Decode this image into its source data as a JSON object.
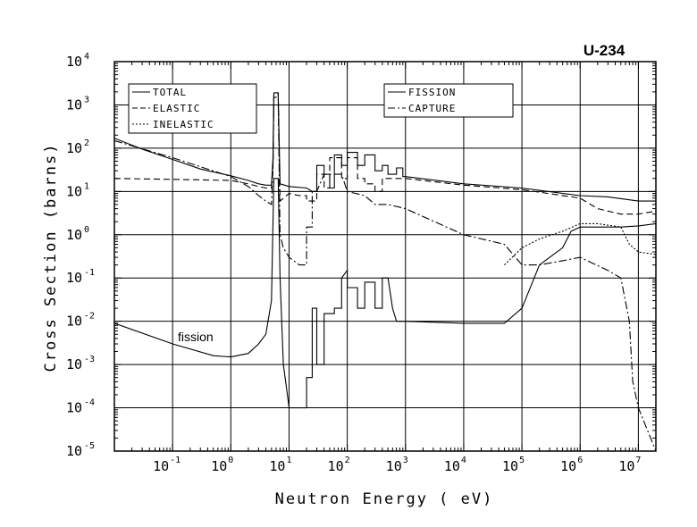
{
  "chart_data": {
    "type": "line",
    "title": "U-234",
    "xlabel": "Neutron Energy ( eV)",
    "ylabel": "Cross Section (barns)",
    "xscale": "log",
    "yscale": "log",
    "xlim": [
      0.01,
      20000000
    ],
    "ylim": [
      1e-05,
      10000
    ],
    "grid": true,
    "x_ticks": [
      {
        "base": "10",
        "exp": "-1"
      },
      {
        "base": "10",
        "exp": "0"
      },
      {
        "base": "10",
        "exp": "1"
      },
      {
        "base": "10",
        "exp": "2"
      },
      {
        "base": "10",
        "exp": "3"
      },
      {
        "base": "10",
        "exp": "4"
      },
      {
        "base": "10",
        "exp": "5"
      },
      {
        "base": "10",
        "exp": "6"
      },
      {
        "base": "10",
        "exp": "7"
      }
    ],
    "y_ticks": [
      {
        "base": "10",
        "exp": "-5"
      },
      {
        "base": "10",
        "exp": "-4"
      },
      {
        "base": "10",
        "exp": "-3"
      },
      {
        "base": "10",
        "exp": "-2"
      },
      {
        "base": "10",
        "exp": "-1"
      },
      {
        "base": "10",
        "exp": "0"
      },
      {
        "base": "10",
        "exp": "1"
      },
      {
        "base": "10",
        "exp": "2"
      },
      {
        "base": "10",
        "exp": "3"
      },
      {
        "base": "10",
        "exp": "4"
      }
    ],
    "legend": [
      {
        "position": "top-left",
        "entries": [
          "TOTAL",
          "ELASTIC",
          "INELASTIC"
        ]
      },
      {
        "position": "top-center",
        "entries": [
          "FISSION",
          "CAPTURE"
        ]
      }
    ],
    "annotations": [
      "fission"
    ],
    "series": [
      {
        "name": "TOTAL",
        "style": "solid",
        "points": [
          [
            0.01,
            170
          ],
          [
            0.03,
            95
          ],
          [
            0.1,
            55
          ],
          [
            0.3,
            33
          ],
          [
            1,
            23
          ],
          [
            2,
            18
          ],
          [
            3,
            15
          ],
          [
            4,
            14
          ],
          [
            5,
            14
          ],
          [
            5.3,
            60
          ],
          [
            5.5,
            1900
          ],
          [
            6.5,
            1900
          ],
          [
            7,
            15
          ],
          [
            10,
            13
          ],
          [
            20,
            12
          ],
          [
            25,
            10
          ],
          [
            30,
            10
          ],
          [
            30,
            40
          ],
          [
            40,
            40
          ],
          [
            40,
            25
          ],
          [
            50,
            25
          ],
          [
            50,
            12
          ],
          [
            60,
            12
          ],
          [
            60,
            70
          ],
          [
            80,
            70
          ],
          [
            80,
            40
          ],
          [
            100,
            40
          ],
          [
            100,
            80
          ],
          [
            150,
            80
          ],
          [
            150,
            40
          ],
          [
            200,
            40
          ],
          [
            200,
            70
          ],
          [
            300,
            70
          ],
          [
            300,
            30
          ],
          [
            400,
            30
          ],
          [
            400,
            40
          ],
          [
            500,
            40
          ],
          [
            500,
            25
          ],
          [
            700,
            25
          ],
          [
            700,
            35
          ],
          [
            900,
            35
          ],
          [
            900,
            22
          ],
          [
            1000,
            22
          ],
          [
            10000,
            15
          ],
          [
            100000,
            12
          ],
          [
            1000000,
            8
          ],
          [
            3000000,
            7.5
          ],
          [
            10000000,
            6
          ],
          [
            20000000,
            6
          ]
        ]
      },
      {
        "name": "ELASTIC",
        "style": "dashed",
        "points": [
          [
            0.01,
            20
          ],
          [
            0.1,
            19
          ],
          [
            1,
            18
          ],
          [
            2,
            15
          ],
          [
            3,
            13
          ],
          [
            4,
            12
          ],
          [
            5,
            12
          ],
          [
            5.3,
            30
          ],
          [
            5.5,
            1900
          ],
          [
            6.5,
            1900
          ],
          [
            7,
            6
          ],
          [
            10,
            9
          ],
          [
            15,
            8
          ],
          [
            20,
            8
          ],
          [
            20,
            6
          ],
          [
            30,
            6
          ],
          [
            30,
            25
          ],
          [
            40,
            25
          ],
          [
            40,
            12
          ],
          [
            50,
            12
          ],
          [
            50,
            60
          ],
          [
            80,
            60
          ],
          [
            80,
            20
          ],
          [
            100,
            20
          ],
          [
            100,
            60
          ],
          [
            150,
            60
          ],
          [
            150,
            20
          ],
          [
            200,
            20
          ],
          [
            200,
            15
          ],
          [
            300,
            15
          ],
          [
            300,
            10
          ],
          [
            400,
            10
          ],
          [
            400,
            20
          ],
          [
            500,
            20
          ],
          [
            500,
            20
          ],
          [
            1000,
            20
          ],
          [
            10000,
            14
          ],
          [
            100000,
            11
          ],
          [
            1000000,
            7
          ],
          [
            2000000,
            4
          ],
          [
            5000000,
            3
          ],
          [
            10000000,
            3
          ],
          [
            20000000,
            3.5
          ]
        ]
      },
      {
        "name": "INELASTIC",
        "style": "dotted",
        "points": [
          [
            50000,
            0.2
          ],
          [
            100000,
            0.5
          ],
          [
            200000,
            0.8
          ],
          [
            500000,
            1.2
          ],
          [
            1000000,
            1.8
          ],
          [
            2000000,
            1.8
          ],
          [
            5000000,
            1.5
          ],
          [
            7000000,
            0.6
          ],
          [
            10000000,
            0.4
          ],
          [
            20000000,
            0.35
          ]
        ]
      },
      {
        "name": "FISSION",
        "style": "solid",
        "points": [
          [
            0.01,
            0.009
          ],
          [
            0.1,
            0.003
          ],
          [
            0.5,
            0.0016
          ],
          [
            1,
            0.0015
          ],
          [
            2,
            0.0018
          ],
          [
            3,
            0.003
          ],
          [
            4,
            0.005
          ],
          [
            5,
            0.03
          ],
          [
            5.3,
            2
          ],
          [
            5.5,
            20
          ],
          [
            6.5,
            20
          ],
          [
            7,
            0.1
          ],
          [
            8,
            0.001
          ],
          [
            9,
            0.0003
          ],
          [
            10,
            0.0001
          ],
          [
            15,
            0.0001
          ],
          [
            20,
            0.0001
          ],
          [
            20,
            0.0005
          ],
          [
            25,
            0.0005
          ],
          [
            25,
            0.02
          ],
          [
            30,
            0.02
          ],
          [
            30,
            0.001
          ],
          [
            40,
            0.001
          ],
          [
            40,
            0.015
          ],
          [
            60,
            0.015
          ],
          [
            60,
            0.02
          ],
          [
            80,
            0.02
          ],
          [
            80,
            0.1
          ],
          [
            100,
            0.15
          ],
          [
            100,
            0.06
          ],
          [
            150,
            0.06
          ],
          [
            150,
            0.02
          ],
          [
            200,
            0.02
          ],
          [
            200,
            0.08
          ],
          [
            300,
            0.08
          ],
          [
            300,
            0.02
          ],
          [
            400,
            0.02
          ],
          [
            400,
            0.1
          ],
          [
            500,
            0.1
          ],
          [
            600,
            0.02
          ],
          [
            700,
            0.01
          ],
          [
            1000,
            0.01
          ],
          [
            10000,
            0.009
          ],
          [
            50000,
            0.009
          ],
          [
            100000,
            0.02
          ],
          [
            200000,
            0.2
          ],
          [
            300000,
            0.3
          ],
          [
            500000,
            0.5
          ],
          [
            700000,
            1.2
          ],
          [
            1000000,
            1.5
          ],
          [
            2000000,
            1.5
          ],
          [
            5000000,
            1.5
          ],
          [
            10000000,
            1.6
          ],
          [
            20000000,
            1.8
          ]
        ]
      },
      {
        "name": "CAPTURE",
        "style": "dash-dot",
        "points": [
          [
            0.01,
            150
          ],
          [
            0.1,
            60
          ],
          [
            1,
            22
          ],
          [
            2,
            13
          ],
          [
            3,
            8
          ],
          [
            4,
            6
          ],
          [
            5,
            5
          ],
          [
            5.3,
            40
          ],
          [
            5.5,
            1500
          ],
          [
            6.5,
            1500
          ],
          [
            7,
            1
          ],
          [
            8,
            0.5
          ],
          [
            10,
            0.3
          ],
          [
            15,
            0.2
          ],
          [
            20,
            0.2
          ],
          [
            20,
            1.5
          ],
          [
            25,
            1.5
          ],
          [
            25,
            10
          ],
          [
            30,
            10
          ],
          [
            40,
            25
          ],
          [
            80,
            25
          ],
          [
            100,
            10
          ],
          [
            200,
            8
          ],
          [
            300,
            5
          ],
          [
            500,
            5
          ],
          [
            1000,
            4
          ],
          [
            10000,
            1
          ],
          [
            50000,
            0.6
          ],
          [
            100000,
            0.2
          ],
          [
            200000,
            0.2
          ],
          [
            500000,
            0.25
          ],
          [
            1000000,
            0.3
          ],
          [
            3000000,
            0.15
          ],
          [
            5000000,
            0.1
          ],
          [
            7000000,
            0.01
          ],
          [
            8000000,
            0.0004
          ],
          [
            10000000,
            0.0001
          ],
          [
            20000000,
            1e-05
          ]
        ]
      }
    ]
  }
}
